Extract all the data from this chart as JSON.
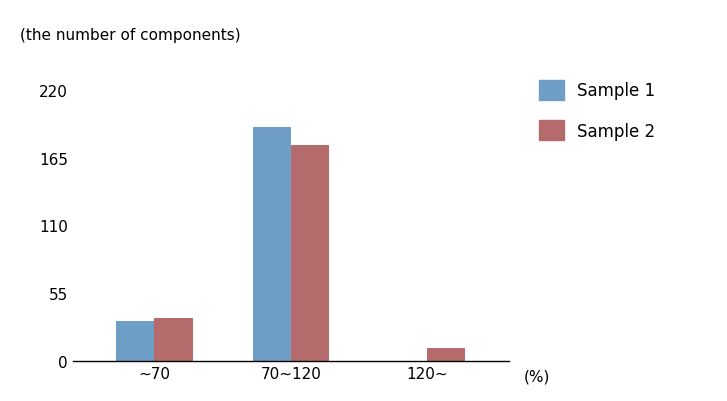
{
  "categories": [
    "~70",
    "70~120",
    "120~"
  ],
  "sample1_values": [
    32,
    190,
    0
  ],
  "sample2_values": [
    35,
    175,
    10
  ],
  "sample1_color": "#6e9dc5",
  "sample2_color": "#b56b6b",
  "ylabel": "(the number of components)",
  "xlabel": "(%)",
  "yticks": [
    0,
    55,
    110,
    165,
    220
  ],
  "ylim": [
    0,
    235
  ],
  "legend_labels": [
    "Sample 1",
    "Sample 2"
  ],
  "bar_width": 0.28,
  "title_fontsize": 11,
  "tick_fontsize": 11,
  "legend_fontsize": 12
}
